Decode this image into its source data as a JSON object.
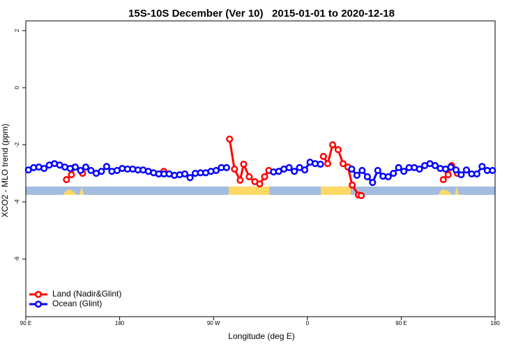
{
  "chart_data": {
    "type": "line",
    "title": "15S-10S December (Ver 10)   2015-01-01 to 2020-12-18",
    "xlabel": "Longitude (deg E)",
    "ylabel": "XCO2 - MLO trend (ppm)",
    "xlim": [
      90,
      540
    ],
    "xticks": [
      {
        "value": 90,
        "label": "90 E"
      },
      {
        "value": 180,
        "label": "180"
      },
      {
        "value": 270,
        "label": "90 W"
      },
      {
        "value": 360,
        "label": "0"
      },
      {
        "value": 450,
        "label": "90 E"
      },
      {
        "value": 540,
        "label": "180"
      }
    ],
    "ylim": [
      -8.02,
      2.34
    ],
    "yticks": [
      2,
      0,
      -2,
      -4,
      -6
    ],
    "legend": "bottomleft",
    "series": [
      {
        "name": "Land (Nadir&Glint)",
        "color": "#ff0000",
        "x": [
          129,
          133.7,
          137,
          140,
          144.4,
          180,
          222.3,
          250,
          285.4,
          290.1,
          295.5,
          298.9,
          304.2,
          309.6,
          314.3,
          319,
          323,
          350,
          375.4,
          379.5,
          384.2,
          389.5,
          394.2,
          398.9,
          403,
          409,
          411.7,
          450,
          490.3,
          495,
          498.3,
          501,
          503.7
        ],
        "values": [
          -3.22,
          -3.05,
          -2.78,
          null,
          -3.0,
          null,
          -2.93,
          null,
          -1.8,
          -2.85,
          -3.24,
          -2.68,
          -3.12,
          -3.29,
          -3.37,
          -3.12,
          -2.9,
          null,
          -2.41,
          -2.66,
          -2.0,
          -2.17,
          -2.66,
          -2.78,
          -3.41,
          -3.76,
          -3.78,
          null,
          -3.22,
          -3.05,
          -2.73,
          null,
          -3.0
        ]
      },
      {
        "name": "Ocean (Glint)",
        "color": "#0000ff",
        "x": [
          92.5,
          97.5,
          102.5,
          107.5,
          112.5,
          117.5,
          122.5,
          127.5,
          132.5,
          137.5,
          142.5,
          147.5,
          152.5,
          157.5,
          162.5,
          167.5,
          172.5,
          177.5,
          182.5,
          187.5,
          192.5,
          197.5,
          202.5,
          207.5,
          212.5,
          217.5,
          222.5,
          227.5,
          232.5,
          237.5,
          242.5,
          247.5,
          252.5,
          257.5,
          262.5,
          267.5,
          272.5,
          277.5,
          282.5,
          287.5,
          292.5,
          297.5,
          302.5,
          307.5,
          312.5,
          317.5,
          322.5,
          327.5,
          332.5,
          337.5,
          342.5,
          347.5,
          352.5,
          357.5,
          362.5,
          367.5,
          372.5,
          377.5,
          382.5,
          387.5,
          392.5,
          397.5,
          402.5,
          407.5,
          412.5,
          417.5,
          422.5,
          427.5,
          432.5,
          437.5,
          442.5,
          447.5,
          452.5,
          457.5,
          462.5,
          467.5,
          472.5,
          477.5,
          482.5,
          487.5,
          492.5,
          497.5,
          502.5,
          507.5,
          512.5,
          517.5,
          522.5,
          527.5,
          532.5,
          537.5
        ],
        "values": [
          -2.88,
          -2.8,
          -2.78,
          -2.83,
          -2.71,
          -2.66,
          -2.71,
          -2.78,
          -2.83,
          -2.78,
          -2.9,
          -2.78,
          -2.9,
          -3.0,
          -2.93,
          -2.76,
          -2.93,
          -2.9,
          -2.83,
          -2.85,
          -2.85,
          -2.88,
          -2.88,
          -2.93,
          -2.98,
          -3.02,
          -3.02,
          -3.02,
          -3.07,
          -3.05,
          -3.02,
          -3.15,
          -3.0,
          -2.98,
          -2.98,
          -2.93,
          -2.9,
          -2.8,
          -2.8,
          null,
          null,
          null,
          null,
          null,
          null,
          null,
          null,
          -2.95,
          -2.93,
          -2.85,
          -2.8,
          -2.93,
          -2.8,
          -2.88,
          -2.61,
          -2.66,
          -2.68,
          null,
          null,
          null,
          null,
          null,
          -2.85,
          -3.07,
          -2.9,
          -3.12,
          -3.32,
          -2.9,
          -3.1,
          -3.12,
          -3.0,
          -2.8,
          -2.93,
          -2.8,
          -2.8,
          -2.85,
          -2.73,
          -2.66,
          -2.73,
          -2.83,
          -2.85,
          -2.78,
          -2.88,
          -3.05,
          -2.88,
          -3.02,
          -3.02,
          -2.76,
          -2.9,
          -2.9
        ]
      }
    ]
  }
}
